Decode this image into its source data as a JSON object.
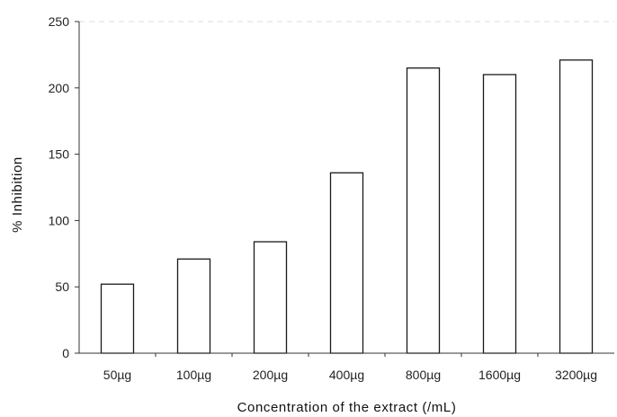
{
  "chart_data": {
    "type": "bar",
    "categories": [
      "50µg",
      "100µg",
      "200µg",
      "400µg",
      "800µg",
      "1600µg",
      "3200µg"
    ],
    "values": [
      52,
      71,
      84,
      136,
      215,
      210,
      221
    ],
    "title": "",
    "xlabel": "Concentration of the extract (/mL)",
    "ylabel": "% Inhibition",
    "ylim": [
      0,
      250
    ],
    "yticks": [
      0,
      50,
      100,
      150,
      200,
      250
    ],
    "grid": false,
    "legend": "none",
    "colors": {
      "bar_fill": "#ffffff",
      "bar_stroke": "#1a1a1a",
      "axis": "#333333"
    }
  }
}
